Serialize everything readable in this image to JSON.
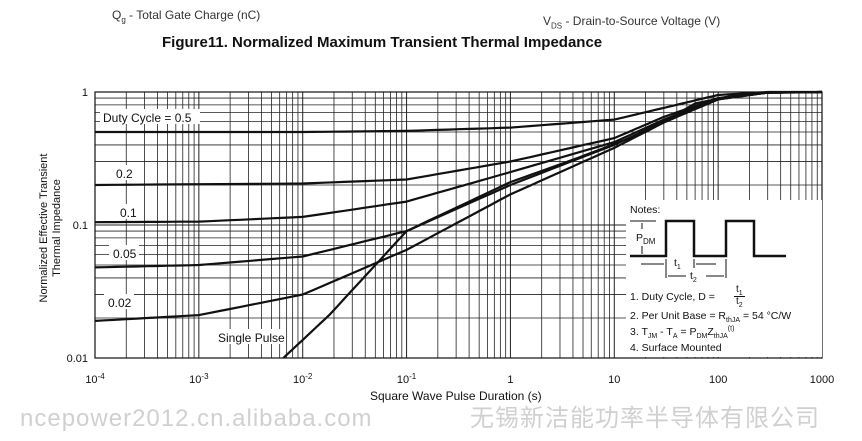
{
  "stray_text": {
    "qg_label": "Q",
    "qg_sub": "g",
    "qg_rest": " - Total Gate Charge (nC)",
    "vds_label": "V",
    "vds_sub": "DS",
    "vds_rest": " - Drain-to-Source Voltage (V)"
  },
  "watermark": {
    "line1": "无锡新洁能功率半导体有限公司",
    "line2": "ncepower2012.cn.alibaba.com"
  },
  "notes": {
    "heading": "Notes:",
    "pdm": "P",
    "pdm_sub": "DM",
    "t1": "t",
    "t1_sub": "1",
    "t2": "t",
    "t2_sub": "2",
    "note1": "1. Duty Cycle, D = ",
    "note2_a": "2. Per Unit Base = R",
    "note2_sub": "thJA",
    "note2_b": " = 54 °C/W",
    "note3_a": "3. T",
    "note3_sub1": "JM",
    "note3_b": " - T",
    "note3_sub2": "A",
    "note3_c": " = P",
    "note3_sub3": "DM",
    "note3_d": "Z",
    "note3_sub4": "thJA",
    "note3_sup": "(t)",
    "note4": "4. Surface Mounted"
  },
  "chart_data": {
    "type": "line",
    "title": "Figure11. Normalized Maximum Transient Thermal Impedance",
    "xlabel": "Square Wave Pulse Duration (s)",
    "ylabel_lines": [
      "Normalized Effective Transient",
      "Thermal Impedance"
    ],
    "xscale": "log",
    "yscale": "log",
    "xlim": [
      0.0001,
      1000
    ],
    "ylim": [
      0.01,
      1
    ],
    "grid": true,
    "x_ticks": [
      {
        "value": 0.0001,
        "base": "10",
        "exp": "-4"
      },
      {
        "value": 0.001,
        "base": "10",
        "exp": "-3"
      },
      {
        "value": 0.01,
        "base": "10",
        "exp": "-2"
      },
      {
        "value": 0.1,
        "base": "10",
        "exp": "-1"
      },
      {
        "value": 1,
        "base": "1",
        "exp": ""
      },
      {
        "value": 10,
        "base": "10",
        "exp": ""
      },
      {
        "value": 100,
        "base": "100",
        "exp": ""
      },
      {
        "value": 1000,
        "base": "1000",
        "exp": ""
      }
    ],
    "y_ticks": [
      {
        "value": 1,
        "label": "1"
      },
      {
        "value": 0.1,
        "label": "0.1"
      },
      {
        "value": 0.01,
        "label": "0.01"
      }
    ],
    "series": [
      {
        "name": "Duty Cycle = 0.5",
        "points": [
          [
            0.0001,
            0.5
          ],
          [
            0.01,
            0.5
          ],
          [
            0.1,
            0.51
          ],
          [
            1,
            0.54
          ],
          [
            10,
            0.62
          ],
          [
            30,
            0.76
          ],
          [
            100,
            0.95
          ],
          [
            300,
            1
          ],
          [
            1000,
            1
          ]
        ]
      },
      {
        "name": "0.2",
        "points": [
          [
            0.0001,
            0.2
          ],
          [
            0.01,
            0.205
          ],
          [
            0.1,
            0.22
          ],
          [
            1,
            0.3
          ],
          [
            10,
            0.45
          ],
          [
            30,
            0.65
          ],
          [
            100,
            0.9
          ],
          [
            300,
            0.99
          ],
          [
            1000,
            1
          ]
        ]
      },
      {
        "name": "0.1",
        "points": [
          [
            0.0001,
            0.105
          ],
          [
            0.001,
            0.106
          ],
          [
            0.01,
            0.115
          ],
          [
            0.1,
            0.15
          ],
          [
            1,
            0.25
          ],
          [
            10,
            0.42
          ],
          [
            30,
            0.62
          ],
          [
            100,
            0.89
          ],
          [
            300,
            0.99
          ],
          [
            1000,
            1
          ]
        ]
      },
      {
        "name": "0.05",
        "points": [
          [
            0.0001,
            0.048
          ],
          [
            0.001,
            0.05
          ],
          [
            0.01,
            0.058
          ],
          [
            0.1,
            0.09
          ],
          [
            1,
            0.2
          ],
          [
            10,
            0.4
          ],
          [
            30,
            0.6
          ],
          [
            100,
            0.88
          ],
          [
            300,
            0.99
          ],
          [
            1000,
            1
          ]
        ]
      },
      {
        "name": "0.02",
        "points": [
          [
            0.0001,
            0.019
          ],
          [
            0.001,
            0.021
          ],
          [
            0.01,
            0.03
          ],
          [
            0.1,
            0.065
          ],
          [
            1,
            0.17
          ],
          [
            10,
            0.38
          ],
          [
            30,
            0.59
          ],
          [
            100,
            0.88
          ],
          [
            300,
            0.99
          ],
          [
            1000,
            1
          ]
        ]
      },
      {
        "name": "Single Pulse",
        "points": [
          [
            0.0065,
            0.01
          ],
          [
            0.018,
            0.021
          ],
          [
            0.1,
            0.09
          ],
          [
            1,
            0.21
          ],
          [
            4.5,
            0.32
          ],
          [
            20,
            0.5
          ],
          [
            60,
            0.82
          ],
          [
            180,
            0.98
          ],
          [
            1000,
            1
          ]
        ]
      }
    ]
  }
}
